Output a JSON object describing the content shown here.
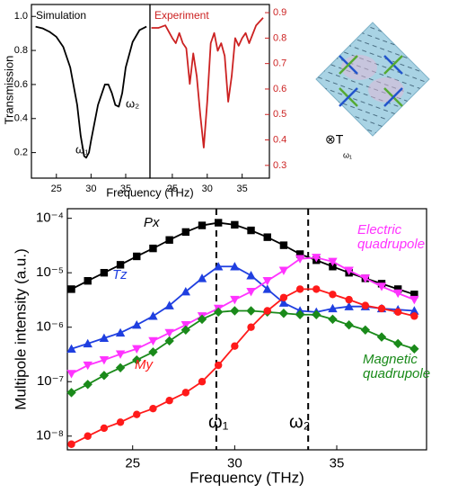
{
  "chart_data": [
    {
      "type": "line",
      "title": "Simulation",
      "xlabel": "Frequency (THz)",
      "ylabel": "Transmission",
      "color": "#000000",
      "axis_color": "#000000",
      "x": [
        22,
        23,
        24,
        25,
        26,
        27,
        28,
        28.5,
        29,
        29.3,
        29.7,
        30,
        31,
        32,
        32.5,
        33,
        33.5,
        34,
        34.5,
        35,
        36,
        37,
        38
      ],
      "values": [
        0.94,
        0.93,
        0.91,
        0.88,
        0.82,
        0.7,
        0.48,
        0.3,
        0.18,
        0.17,
        0.2,
        0.27,
        0.48,
        0.6,
        0.6,
        0.55,
        0.48,
        0.47,
        0.55,
        0.7,
        0.85,
        0.92,
        0.94
      ],
      "xlim": [
        21.4,
        38.5
      ],
      "xticks": [
        25,
        30,
        35
      ],
      "ylim": [
        0.05,
        1.07
      ],
      "yticks": [
        0.2,
        0.4,
        0.6,
        0.8,
        {
          "value": 1.0,
          "label": "1.0"
        }
      ],
      "annotations": [
        "ω₁",
        "ω₂"
      ]
    },
    {
      "type": "line",
      "title": "Experiment",
      "color": "#cc2222",
      "axis_color": "#cc2222",
      "x": [
        22,
        23,
        24,
        25,
        25.5,
        26,
        26.5,
        27,
        27.5,
        28,
        28.5,
        29,
        29.5,
        30,
        30.5,
        31,
        31.5,
        32,
        32.5,
        33,
        33.5,
        34,
        34.5,
        35,
        35.5,
        36,
        37,
        38
      ],
      "values": [
        0.84,
        0.84,
        0.85,
        0.8,
        0.78,
        0.82,
        0.78,
        0.76,
        0.62,
        0.74,
        0.65,
        0.5,
        0.37,
        0.55,
        0.78,
        0.82,
        0.75,
        0.78,
        0.73,
        0.55,
        0.65,
        0.8,
        0.77,
        0.8,
        0.82,
        0.78,
        0.85,
        0.88
      ],
      "xlim": [
        21.8,
        38.9
      ],
      "xticks": [
        25,
        30,
        35
      ],
      "ylim": [
        0.25,
        0.932
      ],
      "yticks": [
        0.3,
        0.4,
        0.5,
        0.6,
        0.7,
        0.8,
        0.9
      ]
    },
    {
      "type": "line",
      "xlabel": "Frequency (THz)",
      "ylabel": "Multipole intensity (a.u.)",
      "log_y": true,
      "x": [
        22,
        22.8,
        23.6,
        24.4,
        25.2,
        26,
        26.8,
        27.6,
        28.4,
        29.2,
        30,
        30.8,
        31.6,
        32.4,
        33.2,
        34,
        34.8,
        35.6,
        36.4,
        37.2,
        38,
        38.8
      ],
      "series": [
        {
          "name": "Px",
          "color": "#000000",
          "marker": "square",
          "values": [
            5e-06,
            7.1e-06,
            1e-05,
            1.4e-05,
            2e-05,
            2.8e-05,
            4e-05,
            5.6e-05,
            7.4e-05,
            8.3e-05,
            7.6e-05,
            6e-05,
            4.5e-05,
            3.2e-05,
            2.2e-05,
            1.7e-05,
            1.3e-05,
            1e-05,
            7.9e-06,
            6.3e-06,
            5e-06,
            4e-06
          ]
        },
        {
          "name": "Tz",
          "color": "#1f3fe0",
          "marker": "triangle-up",
          "values": [
            4e-07,
            5e-07,
            6.3e-07,
            7.9e-07,
            1.1e-06,
            1.6e-06,
            2.5e-06,
            4.5e-06,
            7.9e-06,
            1.3e-05,
            1.3e-05,
            8.9e-06,
            5e-06,
            2.8e-06,
            2e-06,
            1.9e-06,
            2.2e-06,
            2.4e-06,
            2.4e-06,
            2.2e-06,
            2.1e-06,
            2e-06
          ]
        },
        {
          "name": "Electric quadrupole",
          "color": "#ff33ff",
          "marker": "triangle-down",
          "values": [
            1.4e-07,
            2e-07,
            2.5e-07,
            3.2e-07,
            4e-07,
            5.6e-07,
            7.9e-07,
            1.1e-06,
            1.6e-06,
            2.2e-06,
            3.2e-06,
            4.5e-06,
            7.1e-06,
            1.1e-05,
            1.8e-05,
            1.9e-05,
            1.6e-05,
            1.1e-05,
            7.9e-06,
            5.6e-06,
            4.2e-06,
            3.2e-06
          ]
        },
        {
          "name": "Magnetic quadrupole",
          "color": "#1a8a1a",
          "marker": "diamond",
          "values": [
            6.3e-08,
            8.9e-08,
            1.3e-07,
            1.8e-07,
            2.5e-07,
            3.5e-07,
            5.6e-07,
            8.9e-07,
            1.4e-06,
            1.9e-06,
            2e-06,
            2e-06,
            1.9e-06,
            1.8e-06,
            1.7e-06,
            1.7e-06,
            1.4e-06,
            1.1e-06,
            8.9e-07,
            6.6e-07,
            5e-07,
            4e-07
          ]
        },
        {
          "name": "My",
          "color": "#ff1a1a",
          "marker": "circle",
          "values": [
            7.1e-09,
            1e-08,
            1.4e-08,
            1.8e-08,
            2.5e-08,
            3.2e-08,
            4.5e-08,
            6.3e-08,
            1e-07,
            2e-07,
            4.5e-07,
            1e-06,
            2e-06,
            3.5e-06,
            5e-06,
            5e-06,
            4e-06,
            3.2e-06,
            2.5e-06,
            2.2e-06,
            1.9e-06,
            1.6e-06
          ]
        }
      ],
      "xlim": [
        21.8,
        39.4
      ],
      "xticks": [
        25,
        30,
        35
      ],
      "ylim": [
        5.6e-09,
        0.00015
      ],
      "yticks": [
        {
          "value": 1e-08,
          "label": "10⁻⁸"
        },
        {
          "value": 1e-07,
          "label": "10⁻⁷"
        },
        {
          "value": 1e-06,
          "label": "10⁻⁶"
        },
        {
          "value": 1e-05,
          "label": "10⁻⁵"
        },
        {
          "value": 0.0001,
          "label": "10⁻⁴"
        }
      ],
      "vlines": [
        29.1,
        33.6
      ],
      "annotations": [
        "ω₁",
        "ω₂"
      ]
    }
  ],
  "diagram": {
    "labels": [
      "⊗T",
      "ω₁"
    ]
  }
}
